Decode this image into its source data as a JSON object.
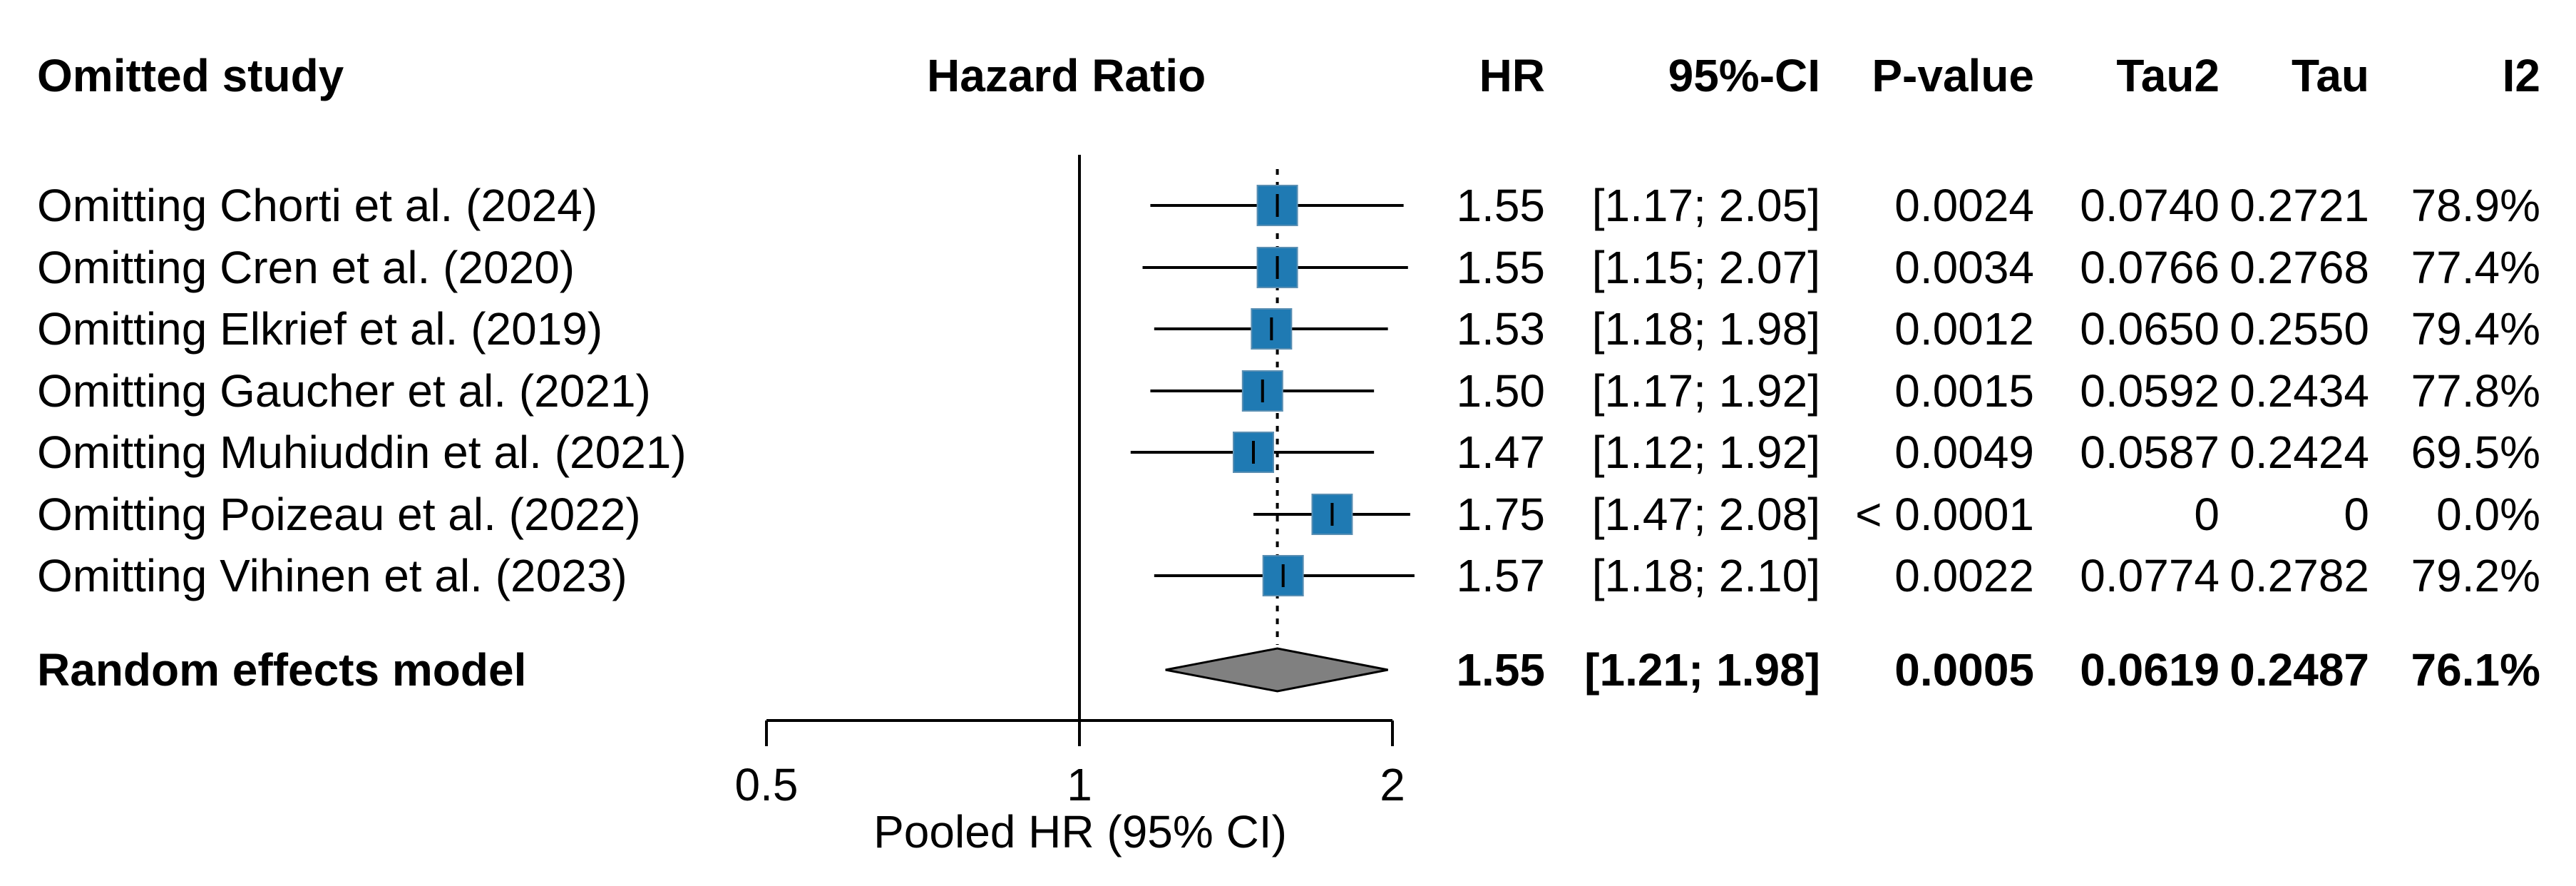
{
  "chart_data": {
    "type": "forest",
    "header": {
      "study": "Omitted study",
      "plot": "Hazard Ratio",
      "hr": "HR",
      "ci": "95%-CI",
      "p": "P-value",
      "tau2": "Tau2",
      "tau": "Tau",
      "i2": "I2"
    },
    "rows": [
      {
        "study": "Omitting Chorti et al. (2024)",
        "hr": 1.55,
        "lower": 1.17,
        "upper": 2.05,
        "hr_text": "1.55",
        "ci_text": "[1.17; 2.05]",
        "p": "0.0024",
        "tau2": "0.0740",
        "tau": "0.2721",
        "i2": "78.9%"
      },
      {
        "study": "Omitting Cren et al. (2020)",
        "hr": 1.55,
        "lower": 1.15,
        "upper": 2.07,
        "hr_text": "1.55",
        "ci_text": "[1.15; 2.07]",
        "p": "0.0034",
        "tau2": "0.0766",
        "tau": "0.2768",
        "i2": "77.4%"
      },
      {
        "study": "Omitting Elkrief et al. (2019)",
        "hr": 1.53,
        "lower": 1.18,
        "upper": 1.98,
        "hr_text": "1.53",
        "ci_text": "[1.18; 1.98]",
        "p": "0.0012",
        "tau2": "0.0650",
        "tau": "0.2550",
        "i2": "79.4%"
      },
      {
        "study": "Omitting Gaucher et al. (2021)",
        "hr": 1.5,
        "lower": 1.17,
        "upper": 1.92,
        "hr_text": "1.50",
        "ci_text": "[1.17; 1.92]",
        "p": "0.0015",
        "tau2": "0.0592",
        "tau": "0.2434",
        "i2": "77.8%"
      },
      {
        "study": "Omitting Muhiuddin et al. (2021)",
        "hr": 1.47,
        "lower": 1.12,
        "upper": 1.92,
        "hr_text": "1.47",
        "ci_text": "[1.12; 1.92]",
        "p": "0.0049",
        "tau2": "0.0587",
        "tau": "0.2424",
        "i2": "69.5%"
      },
      {
        "study": "Omitting Poizeau et al. (2022)",
        "hr": 1.75,
        "lower": 1.47,
        "upper": 2.08,
        "hr_text": "1.75",
        "ci_text": "[1.47; 2.08]",
        "p": "< 0.0001",
        "tau2": "0",
        "tau": "0",
        "i2": "0.0%"
      },
      {
        "study": "Omitting Vihinen et al. (2023)",
        "hr": 1.57,
        "lower": 1.18,
        "upper": 2.1,
        "hr_text": "1.57",
        "ci_text": "[1.18; 2.10]",
        "p": "0.0022",
        "tau2": "0.0774",
        "tau": "0.2782",
        "i2": "79.2%"
      }
    ],
    "summary": {
      "study": "Random effects model",
      "hr": 1.55,
      "lower": 1.21,
      "upper": 1.98,
      "hr_text": "1.55",
      "ci_text": "[1.21; 1.98]",
      "p": "0.0005",
      "tau2": "0.0619",
      "tau": "0.2487",
      "i2": "76.1%"
    },
    "xaxis": {
      "scale": "log",
      "range": [
        0.5,
        2
      ],
      "ticks": [
        0.5,
        1,
        2
      ],
      "tick_labels": [
        "0.5",
        "1",
        "2"
      ],
      "label": "Pooled HR (95% CI)"
    },
    "reference_line": 1,
    "colors": {
      "box": "#1f7ab3",
      "diamond": "#808080",
      "text": "#000000"
    }
  }
}
